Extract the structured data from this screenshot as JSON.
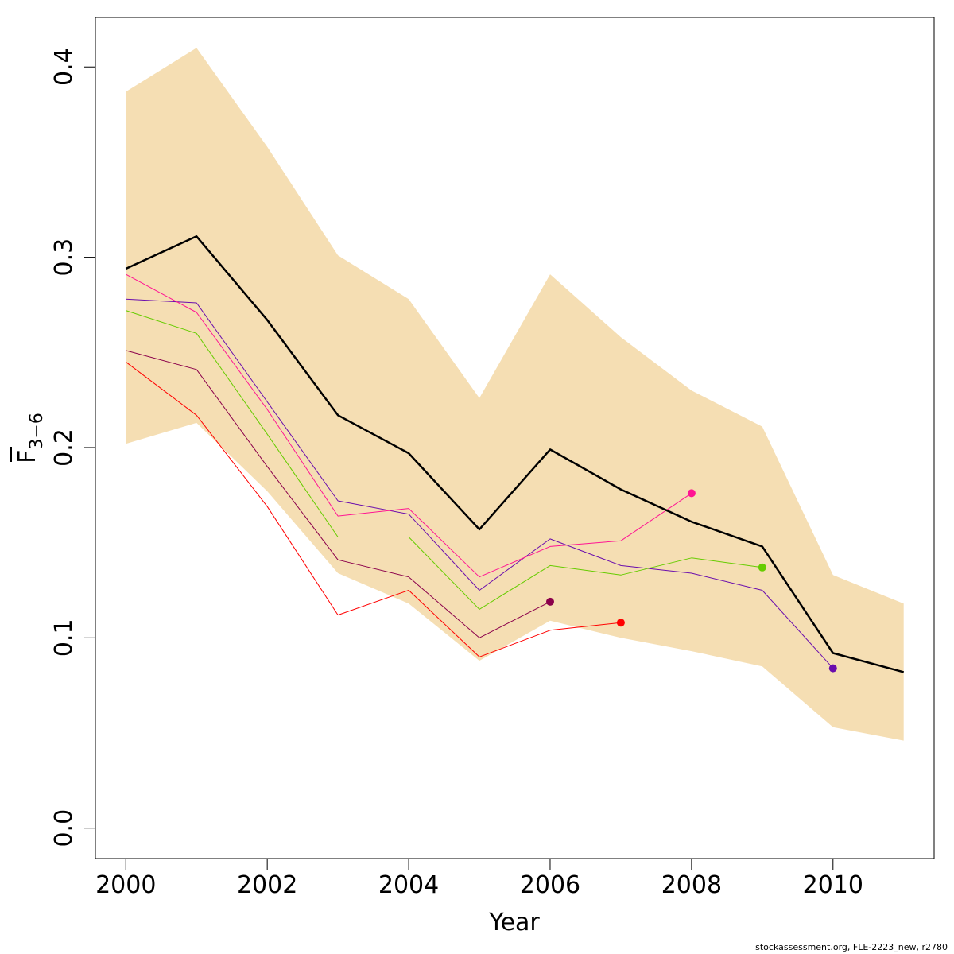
{
  "chart_data": {
    "type": "line",
    "xlabel": "Year",
    "ylabel_main": "F",
    "ylabel_sub": "3−6",
    "xlim": [
      1999.57,
      2011.43
    ],
    "ylim": [
      -0.016,
      0.426
    ],
    "x_ticks": [
      2000,
      2002,
      2004,
      2006,
      2008,
      2010
    ],
    "y_ticks": [
      0.0,
      0.1,
      0.2,
      0.3,
      0.4
    ],
    "x_tick_labels": [
      "2000",
      "2002",
      "2004",
      "2006",
      "2008",
      "2010"
    ],
    "y_tick_labels": [
      "0.0",
      "0.1",
      "0.2",
      "0.3",
      "0.4"
    ],
    "band": {
      "color": "#F5DEB3",
      "x": [
        2000,
        2001,
        2002,
        2003,
        2004,
        2005,
        2006,
        2007,
        2008,
        2009,
        2010,
        2011
      ],
      "upper": [
        0.387,
        0.41,
        0.358,
        0.301,
        0.278,
        0.226,
        0.291,
        0.258,
        0.23,
        0.211,
        0.133,
        0.118
      ],
      "lower": [
        0.202,
        0.213,
        0.177,
        0.134,
        0.118,
        0.088,
        0.109,
        0.1,
        0.093,
        0.085,
        0.053,
        0.046
      ]
    },
    "series": [
      {
        "color": "#000000",
        "width": 2.5,
        "x": [
          2000,
          2001,
          2002,
          2003,
          2004,
          2005,
          2006,
          2007,
          2008,
          2009,
          2010,
          2011
        ],
        "values": [
          0.294,
          0.311,
          0.267,
          0.217,
          0.197,
          0.157,
          0.199,
          0.178,
          0.161,
          0.148,
          0.092,
          0.082
        ],
        "end_point": false
      },
      {
        "color": "#6A0DAD",
        "width": 1,
        "x": [
          2000,
          2001,
          2002,
          2003,
          2004,
          2005,
          2006,
          2007,
          2008,
          2009,
          2010
        ],
        "values": [
          0.278,
          0.276,
          0.224,
          0.172,
          0.165,
          0.125,
          0.152,
          0.138,
          0.134,
          0.125,
          0.084
        ],
        "end_point": true
      },
      {
        "color": "#66CC00",
        "width": 1,
        "x": [
          2000,
          2001,
          2002,
          2003,
          2004,
          2005,
          2006,
          2007,
          2008,
          2009
        ],
        "values": [
          0.272,
          0.26,
          0.207,
          0.153,
          0.153,
          0.115,
          0.138,
          0.133,
          0.142,
          0.137
        ],
        "end_point": true
      },
      {
        "color": "#FF1493",
        "width": 1,
        "x": [
          2000,
          2001,
          2002,
          2003,
          2004,
          2005,
          2006,
          2007,
          2008
        ],
        "values": [
          0.291,
          0.271,
          0.22,
          0.164,
          0.168,
          0.132,
          0.148,
          0.151,
          0.176
        ],
        "end_point": true
      },
      {
        "color": "#FF0000",
        "width": 1,
        "x": [
          2000,
          2001,
          2002,
          2003,
          2004,
          2005,
          2006,
          2007
        ],
        "values": [
          0.245,
          0.217,
          0.169,
          0.112,
          0.125,
          0.09,
          0.104,
          0.108
        ],
        "end_point": true
      },
      {
        "color": "#8B004B",
        "width": 1,
        "x": [
          2000,
          2001,
          2002,
          2003,
          2004,
          2005,
          2006
        ],
        "values": [
          0.251,
          0.241,
          0.19,
          0.141,
          0.132,
          0.1,
          0.119
        ],
        "end_point": true
      }
    ],
    "grid": false,
    "legend": "none"
  },
  "footer": "stockassessment.org, FLE-2223_new, r2780"
}
